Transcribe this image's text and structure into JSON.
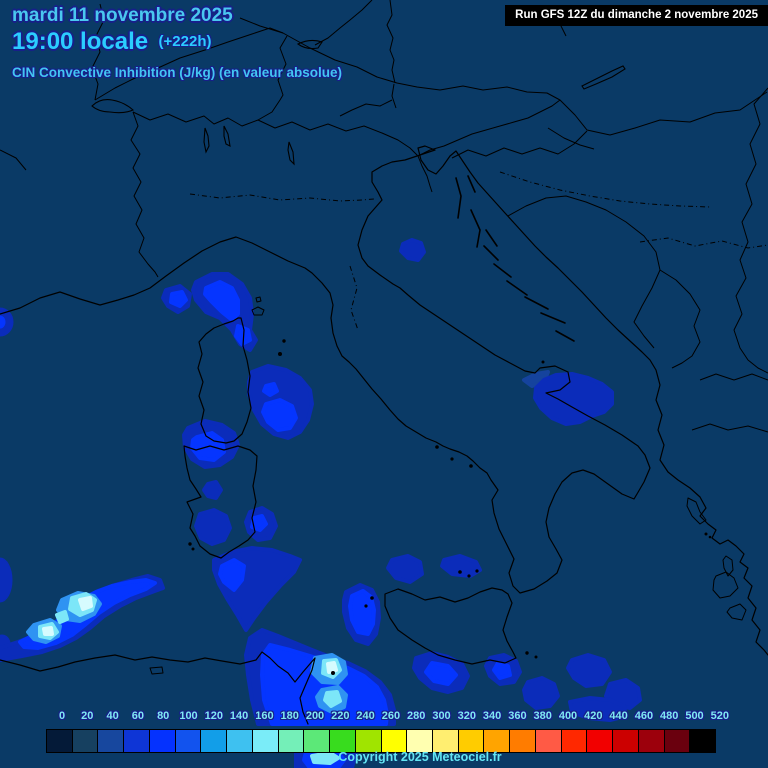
{
  "header": {
    "date_line": "mardi 11 novembre 2025",
    "time_line": "19:00 locale",
    "offset_badge": "(+222h)",
    "param_line": "CIN Convective Inhibition (J/kg) (en valeur absolue)",
    "run_box": "Run GFS 12Z du dimanche 2 novembre 2025"
  },
  "footer": {
    "copyright": "Copyright 2025 Meteociel.fr"
  },
  "colorbar": {
    "unit": "J/kg",
    "tick_labels": [
      "0",
      "20",
      "40",
      "60",
      "80",
      "100",
      "120",
      "140",
      "160",
      "180",
      "200",
      "220",
      "240",
      "260",
      "280",
      "300",
      "320",
      "340",
      "360",
      "380",
      "400",
      "420",
      "440",
      "460",
      "480",
      "500",
      "520"
    ],
    "cell_colors": [
      "#041a38",
      "#164060",
      "#17479e",
      "#0e35d6",
      "#0532fe",
      "#1253ee",
      "#129ee8",
      "#3ec1f0",
      "#7aecf8",
      "#74efb8",
      "#5ce878",
      "#38dc1e",
      "#a0e400",
      "#ffff00",
      "#ffffb0",
      "#ffee70",
      "#ffcc00",
      "#ffa400",
      "#ff7c00",
      "#ff5a45",
      "#ff2800",
      "#f20000",
      "#cc0000",
      "#9c000c",
      "#6a000e",
      "#000000"
    ]
  },
  "colors": {
    "map_background": "#0a3a66",
    "title_date": "#4ac7ef",
    "title_time": "#2bcdff",
    "param_label": "#43c5f1",
    "tick_text": "#7fe9f2",
    "run_box_bg": "#000000",
    "run_box_text": "#ffffff",
    "cin_levels": [
      "#15439d",
      "#0b2cba",
      "#0535ff",
      "#2f93f2",
      "#7ce6f8",
      "#d6fbfe"
    ]
  }
}
